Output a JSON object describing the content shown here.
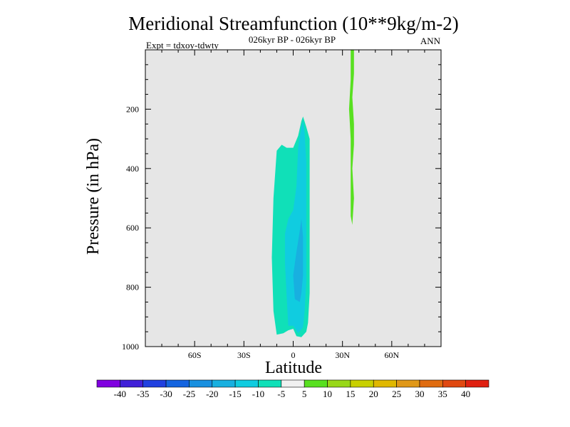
{
  "chart_data": {
    "type": "heatmap",
    "title": "Meridional Streamfunction (10**9kg/m-2)",
    "subtitle": "026kyr BP - 026kyr BP",
    "left_label": "Expt = tdxoy-tdwty",
    "right_label": "ANN",
    "xlabel": "Latitude",
    "ylabel": "Pressure (in hPa)",
    "xlim": [
      -90,
      90
    ],
    "ylim": [
      1000,
      0
    ],
    "y_reversed": true,
    "background_color": "#e6e6e6",
    "x_ticks": [
      {
        "value": -60,
        "label": "60S"
      },
      {
        "value": -30,
        "label": "30S"
      },
      {
        "value": 0,
        "label": "0"
      },
      {
        "value": 30,
        "label": "30N"
      },
      {
        "value": 60,
        "label": "60N"
      }
    ],
    "y_ticks": [
      {
        "value": 200,
        "label": "200"
      },
      {
        "value": 400,
        "label": "400"
      },
      {
        "value": 600,
        "label": "600"
      },
      {
        "value": 800,
        "label": "800"
      },
      {
        "value": 1000,
        "label": "1000"
      }
    ],
    "colorbar": {
      "levels": [
        -40,
        -35,
        -30,
        -25,
        -20,
        -15,
        -10,
        -5,
        5,
        10,
        15,
        20,
        25,
        30,
        35,
        40
      ],
      "labels": [
        "-40",
        "-35",
        "-30",
        "-25",
        "-20",
        "-15",
        "-10",
        "-5",
        "5",
        "10",
        "15",
        "20",
        "25",
        "30",
        "35",
        "40"
      ],
      "colors": [
        "#8000e0",
        "#4020d8",
        "#2040e0",
        "#1464e0",
        "#1890e0",
        "#18b0e0",
        "#10cce0",
        "#10e0b8",
        "#f0f0f0",
        "#58e020",
        "#98d818",
        "#c8d000",
        "#e0b800",
        "#e09818",
        "#e06c10",
        "#e04810",
        "#e02010"
      ]
    },
    "regions": [
      {
        "name": "negative-cell-outer",
        "range": "-10 to -5",
        "color": "#10e0b8",
        "outline": [
          [
            -10,
            960
          ],
          [
            -12,
            880
          ],
          [
            -13,
            700
          ],
          [
            -12,
            500
          ],
          [
            -10,
            340
          ],
          [
            -7,
            320
          ],
          [
            -4,
            330
          ],
          [
            0,
            330
          ],
          [
            3,
            290
          ],
          [
            5,
            240
          ],
          [
            6,
            225
          ],
          [
            8,
            260
          ],
          [
            10,
            300
          ],
          [
            10,
            500
          ],
          [
            10,
            700
          ],
          [
            10,
            820
          ],
          [
            9,
            920
          ],
          [
            8,
            950
          ],
          [
            5,
            968
          ],
          [
            2,
            965
          ],
          [
            0,
            940
          ],
          [
            -3,
            945
          ],
          [
            -6,
            955
          ]
        ]
      },
      {
        "name": "negative-cell-mid",
        "range": "-15 to -10",
        "color": "#10cce0",
        "outline": [
          [
            -3,
            930
          ],
          [
            -4,
            830
          ],
          [
            -5,
            720
          ],
          [
            -5,
            620
          ],
          [
            -3,
            570
          ],
          [
            0,
            540
          ],
          [
            2,
            460
          ],
          [
            3,
            330
          ],
          [
            5,
            260
          ],
          [
            6,
            240
          ],
          [
            7,
            280
          ],
          [
            8,
            380
          ],
          [
            8,
            600
          ],
          [
            8,
            780
          ],
          [
            7,
            880
          ],
          [
            6,
            935
          ],
          [
            3,
            955
          ],
          [
            0,
            930
          ]
        ]
      },
      {
        "name": "negative-cell-inner",
        "range": "-20 to -15",
        "color": "#18b0e0",
        "outline": [
          [
            1,
            840
          ],
          [
            0,
            760
          ],
          [
            2,
            680
          ],
          [
            4,
            610
          ],
          [
            5,
            570
          ],
          [
            6,
            630
          ],
          [
            6,
            760
          ],
          [
            5,
            820
          ],
          [
            4,
            850
          ]
        ]
      },
      {
        "name": "positive-strip",
        "range": "5 to 10",
        "color": "#58e020",
        "outline": [
          [
            35,
            0
          ],
          [
            37,
            0
          ],
          [
            37,
            80
          ],
          [
            36,
            160
          ],
          [
            37,
            250
          ],
          [
            37,
            320
          ],
          [
            36,
            400
          ],
          [
            37,
            500
          ],
          [
            36,
            590
          ],
          [
            35,
            560
          ],
          [
            35,
            450
          ],
          [
            35,
            300
          ],
          [
            34,
            200
          ],
          [
            35,
            100
          ]
        ]
      }
    ]
  }
}
